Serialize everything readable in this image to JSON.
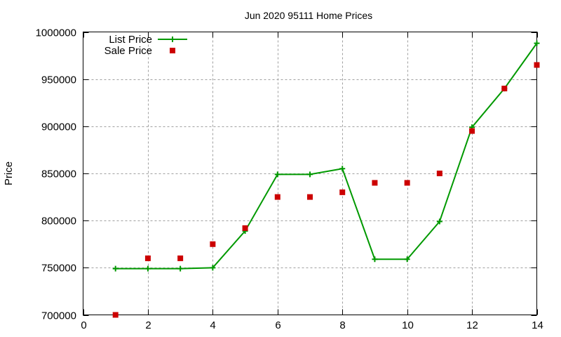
{
  "chart_data": {
    "type": "line",
    "title": "Jun 2020 95111 Home Prices",
    "xlabel": "",
    "ylabel": "Price",
    "xlim": [
      0,
      14
    ],
    "ylim": [
      700000,
      1000000
    ],
    "xticks": [
      0,
      2,
      4,
      6,
      8,
      10,
      12,
      14
    ],
    "yticks": [
      700000,
      750000,
      800000,
      850000,
      900000,
      950000,
      1000000
    ],
    "grid": true,
    "legend_position": "top-left",
    "series": [
      {
        "name": "List Price",
        "style": "line+points",
        "marker": "plus",
        "color": "#009900",
        "x": [
          1,
          2,
          3,
          4,
          5,
          6,
          7,
          8,
          9,
          10,
          11,
          12,
          13,
          14
        ],
        "values": [
          749000,
          749000,
          749000,
          750000,
          789000,
          849000,
          849000,
          855000,
          759000,
          759000,
          799000,
          899000,
          940000,
          988000
        ]
      },
      {
        "name": "Sale Price",
        "style": "points",
        "marker": "square",
        "color": "#cc0000",
        "x": [
          1,
          2,
          3,
          4,
          5,
          6,
          7,
          8,
          9,
          10,
          11,
          12,
          13,
          14
        ],
        "values": [
          700000,
          760000,
          760000,
          775000,
          792000,
          825000,
          825000,
          830000,
          840000,
          840000,
          850000,
          895000,
          940000,
          965000
        ]
      }
    ]
  }
}
